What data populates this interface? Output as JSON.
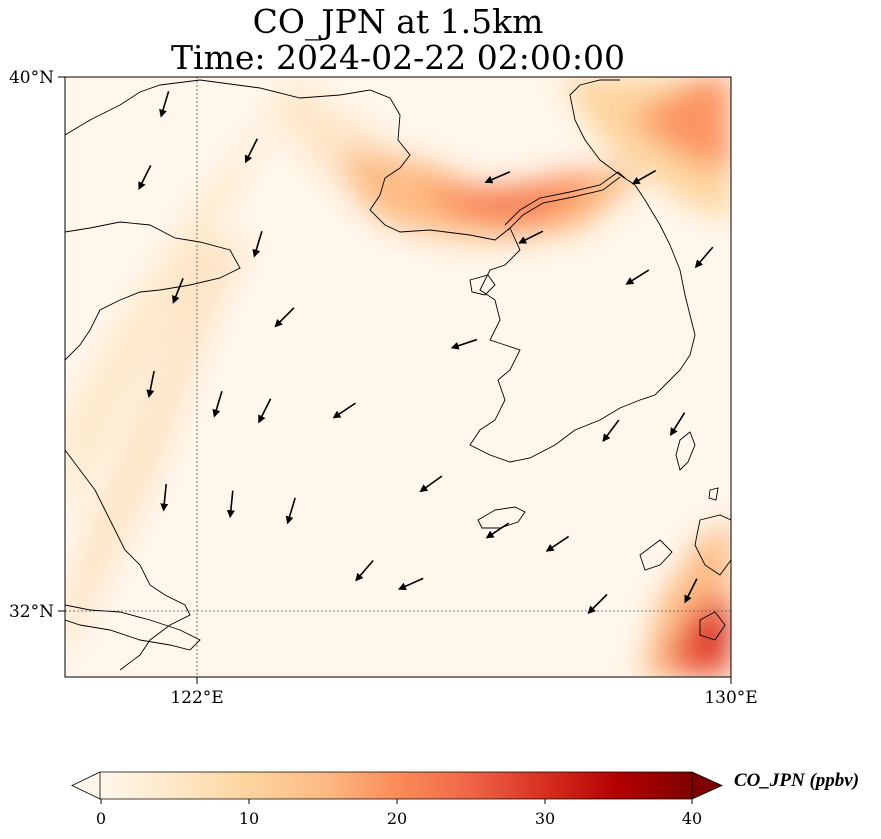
{
  "title": {
    "line1": "CO_JPN at 1.5km",
    "line2": "Time: 2024-02-22 02:00:00"
  },
  "axes": {
    "lat_ticks": [
      "40°N",
      "32°N"
    ],
    "lon_ticks": [
      "122°E",
      "130°E"
    ]
  },
  "colorbar": {
    "label": "CO_JPN (ppbv)",
    "ticks": [
      "0",
      "10",
      "20",
      "30",
      "40"
    ],
    "colormap": "OrRd",
    "colors": [
      "#fff7ec",
      "#fee8c8",
      "#fdd49e",
      "#fdbb84",
      "#fc8d59",
      "#ef6548",
      "#d7301f",
      "#b30000",
      "#7f0000"
    ]
  },
  "chart_data": {
    "type": "heatmap",
    "variable": "CO_JPN",
    "units": "ppbv",
    "level": "1.5km",
    "time": "2024-02-22 02:00:00",
    "lon_range": [
      120,
      130
    ],
    "lat_range": [
      31,
      40
    ],
    "value_range": [
      0,
      40
    ],
    "grid_lines": {
      "lon": [
        122
      ],
      "lat": [
        32
      ]
    },
    "plumes": [
      {
        "area": "Bohai / west Korea Bay coast",
        "lon": [
          123.5,
          127
        ],
        "lat": [
          37.5,
          39.2
        ],
        "peak": 20
      },
      {
        "area": "northeast corner",
        "lon": [
          128.5,
          130
        ],
        "lat": [
          38.5,
          40
        ],
        "peak": 18
      },
      {
        "area": "southeast corner (near Kyushu)",
        "lon": [
          129,
          130
        ],
        "lat": [
          31,
          32.5
        ],
        "peak": 24
      },
      {
        "area": "southwest diagonal band",
        "lon": [
          120,
          123.5
        ],
        "lat": [
          31.5,
          38
        ],
        "peak": 5
      }
    ],
    "wind_vectors": [
      {
        "lon": 121.5,
        "lat": 39.6,
        "u": -0.3,
        "v": -1.0
      },
      {
        "lon": 122.8,
        "lat": 38.9,
        "u": -0.5,
        "v": -1.0
      },
      {
        "lon": 121.2,
        "lat": 38.5,
        "u": -0.5,
        "v": -1.0
      },
      {
        "lon": 122.9,
        "lat": 37.5,
        "u": -0.3,
        "v": -1.0
      },
      {
        "lon": 121.7,
        "lat": 36.8,
        "u": -0.4,
        "v": -1.0
      },
      {
        "lon": 123.3,
        "lat": 36.4,
        "u": -0.7,
        "v": -0.7
      },
      {
        "lon": 121.3,
        "lat": 35.4,
        "u": -0.2,
        "v": -1.0
      },
      {
        "lon": 122.3,
        "lat": 35.1,
        "u": -0.3,
        "v": -1.0
      },
      {
        "lon": 123.0,
        "lat": 35.0,
        "u": -0.5,
        "v": -1.0
      },
      {
        "lon": 124.2,
        "lat": 35.0,
        "u": -0.9,
        "v": -0.6
      },
      {
        "lon": 121.5,
        "lat": 33.7,
        "u": -0.1,
        "v": -1.0
      },
      {
        "lon": 122.5,
        "lat": 33.6,
        "u": -0.1,
        "v": -1.0
      },
      {
        "lon": 123.4,
        "lat": 33.5,
        "u": -0.3,
        "v": -1.0
      },
      {
        "lon": 124.5,
        "lat": 32.6,
        "u": -0.6,
        "v": -0.7
      },
      {
        "lon": 125.2,
        "lat": 32.4,
        "u": -0.9,
        "v": -0.4
      },
      {
        "lon": 125.5,
        "lat": 33.9,
        "u": -0.7,
        "v": -0.5
      },
      {
        "lon": 126.5,
        "lat": 33.2,
        "u": -0.9,
        "v": -0.6
      },
      {
        "lon": 127.4,
        "lat": 33.0,
        "u": -0.9,
        "v": -0.6
      },
      {
        "lon": 128.0,
        "lat": 32.1,
        "u": -0.7,
        "v": -0.7
      },
      {
        "lon": 127.0,
        "lat": 37.6,
        "u": -0.6,
        "v": -0.3
      },
      {
        "lon": 126.0,
        "lat": 36.0,
        "u": -0.9,
        "v": -0.3
      },
      {
        "lon": 126.5,
        "lat": 38.5,
        "u": -0.7,
        "v": -0.3
      },
      {
        "lon": 128.7,
        "lat": 38.5,
        "u": -0.7,
        "v": -0.4
      },
      {
        "lon": 128.6,
        "lat": 37.0,
        "u": -0.8,
        "v": -0.5
      },
      {
        "lon": 129.6,
        "lat": 37.3,
        "u": -0.6,
        "v": -0.7
      },
      {
        "lon": 128.2,
        "lat": 34.7,
        "u": -0.6,
        "v": -0.8
      },
      {
        "lon": 129.2,
        "lat": 34.8,
        "u": -0.5,
        "v": -0.8
      },
      {
        "lon": 129.4,
        "lat": 32.3,
        "u": -0.4,
        "v": -0.8
      }
    ]
  }
}
